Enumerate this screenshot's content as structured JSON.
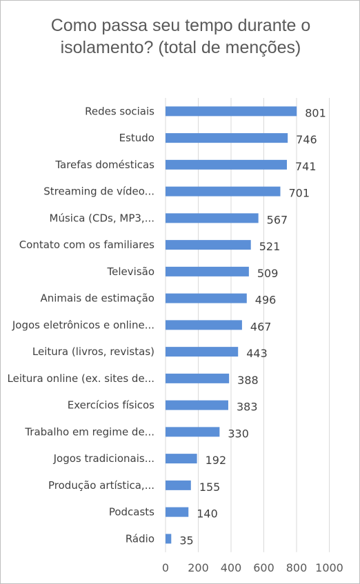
{
  "chart_data": {
    "type": "bar",
    "orientation": "horizontal",
    "title": "Como passa seu tempo durante o isolamento? (total de menções)",
    "categories": [
      "Redes sociais",
      "Estudo",
      "Tarefas domésticas",
      "Streaming de vídeo...",
      "Música (CDs, MP3,...",
      "Contato com os familiares",
      "Televisão",
      "Animais de estimação",
      "Jogos eletrônicos e online...",
      "Leitura (livros, revistas)",
      "Leitura online (ex. sites de...",
      "Exercícios físicos",
      "Trabalho em regime de...",
      "Jogos tradicionais...",
      "Produção artística,...",
      "Podcasts",
      "Rádio"
    ],
    "values": [
      801,
      746,
      741,
      701,
      567,
      521,
      509,
      496,
      467,
      443,
      388,
      383,
      330,
      192,
      155,
      140,
      35
    ],
    "xlim": [
      0,
      1000
    ],
    "xticks": [
      "0",
      "200",
      "400",
      "600",
      "800",
      "1000"
    ],
    "grid": true,
    "legend": "none",
    "bar_color": "#5b8fd7",
    "grid_color": "#d9d9d9"
  }
}
